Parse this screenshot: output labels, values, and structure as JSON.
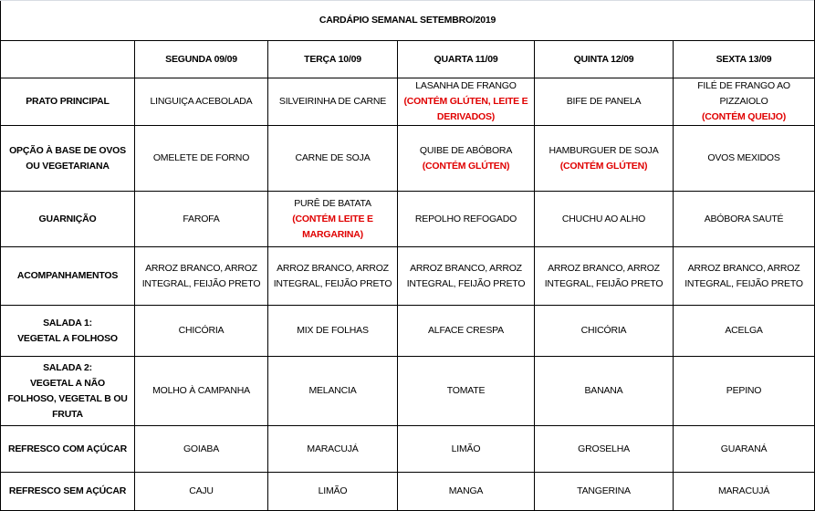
{
  "title": "CARDÁPIO SEMANAL SETEMBRO/2019",
  "accent_color": "#e00000",
  "days": [
    "SEGUNDA  09/09",
    "TERÇA 10/09",
    "QUARTA 11/09",
    "QUINTA 12/09",
    "SEXTA 13/09"
  ],
  "rows": [
    {
      "label": [
        "PRATO PRINCIPAL"
      ],
      "cells": [
        {
          "lines": [
            "LINGUIÇA ACEBOLADA"
          ],
          "note": []
        },
        {
          "lines": [
            "SILVEIRINHA DE CARNE"
          ],
          "note": []
        },
        {
          "lines": [
            "LASANHA  DE FRANGO"
          ],
          "note": [
            "(CONTÉM GLÚTEN, LEITE E",
            "DERIVADOS)"
          ]
        },
        {
          "lines": [
            "BIFE DE PANELA"
          ],
          "note": []
        },
        {
          "lines": [
            "FILÉ DE FRANGO AO",
            "PIZZAIOLO"
          ],
          "note": [
            "(CONTÉM QUEIJO)"
          ]
        }
      ]
    },
    {
      "label": [
        "OPÇÃO À BASE DE OVOS",
        "OU VEGETARIANA"
      ],
      "cells": [
        {
          "lines": [
            "OMELETE DE FORNO"
          ],
          "note": []
        },
        {
          "lines": [
            "CARNE DE SOJA"
          ],
          "note": []
        },
        {
          "lines": [
            "QUIBE DE ABÓBORA"
          ],
          "note": [
            "(CONTÉM GLÚTEN)"
          ]
        },
        {
          "lines": [
            "HAMBURGUER DE SOJA"
          ],
          "note": [
            "(CONTÉM GLÚTEN)"
          ]
        },
        {
          "lines": [
            "OVOS MEXIDOS"
          ],
          "note": []
        }
      ]
    },
    {
      "label": [
        "GUARNIÇÃO"
      ],
      "cells": [
        {
          "lines": [
            "FAROFA"
          ],
          "note": []
        },
        {
          "lines": [
            "PURÊ DE BATATA"
          ],
          "note": [
            "(CONTÉM LEITE E",
            "MARGARINA)"
          ]
        },
        {
          "lines": [
            "REPOLHO REFOGADO"
          ],
          "note": []
        },
        {
          "lines": [
            "CHUCHU AO ALHO"
          ],
          "note": []
        },
        {
          "lines": [
            "ABÓBORA SAUTÉ"
          ],
          "note": []
        }
      ]
    },
    {
      "label": [
        "ACOMPANHAMENTOS"
      ],
      "cells": [
        {
          "lines": [
            "ARROZ BRANCO, ARROZ",
            "INTEGRAL, FEIJÃO PRETO"
          ],
          "note": []
        },
        {
          "lines": [
            "ARROZ BRANCO, ARROZ",
            "INTEGRAL, FEIJÃO PRETO"
          ],
          "note": []
        },
        {
          "lines": [
            "ARROZ BRANCO, ARROZ",
            "INTEGRAL, FEIJÃO PRETO"
          ],
          "note": []
        },
        {
          "lines": [
            "ARROZ BRANCO, ARROZ",
            "INTEGRAL, FEIJÃO PRETO"
          ],
          "note": []
        },
        {
          "lines": [
            "ARROZ BRANCO, ARROZ",
            "INTEGRAL, FEIJÃO PRETO"
          ],
          "note": []
        }
      ]
    },
    {
      "label": [
        "SALADA 1:",
        "VEGETAL A FOLHOSO"
      ],
      "cells": [
        {
          "lines": [
            "CHICÓRIA"
          ],
          "note": []
        },
        {
          "lines": [
            "MIX DE FOLHAS"
          ],
          "note": []
        },
        {
          "lines": [
            "ALFACE  CRESPA"
          ],
          "note": []
        },
        {
          "lines": [
            "CHICÓRIA"
          ],
          "note": []
        },
        {
          "lines": [
            "ACELGA"
          ],
          "note": []
        }
      ]
    },
    {
      "label": [
        "SALADA 2:",
        "VEGETAL A NÃO",
        "FOLHOSO, VEGETAL B OU",
        "FRUTA"
      ],
      "cells": [
        {
          "lines": [
            "MOLHO À CAMPANHA"
          ],
          "note": []
        },
        {
          "lines": [
            "MELANCIA"
          ],
          "note": []
        },
        {
          "lines": [
            "TOMATE"
          ],
          "note": []
        },
        {
          "lines": [
            "BANANA"
          ],
          "note": []
        },
        {
          "lines": [
            "PEPINO"
          ],
          "note": []
        }
      ]
    },
    {
      "label": [
        "REFRESCO COM AÇÚCAR"
      ],
      "cells": [
        {
          "lines": [
            "GOIABA"
          ],
          "note": []
        },
        {
          "lines": [
            "MARACUJÁ"
          ],
          "note": []
        },
        {
          "lines": [
            "LIMÃO"
          ],
          "note": []
        },
        {
          "lines": [
            "GROSELHA"
          ],
          "note": []
        },
        {
          "lines": [
            "GUARANÁ"
          ],
          "note": []
        }
      ]
    },
    {
      "label": [
        "REFRESCO SEM AÇÚCAR"
      ],
      "cells": [
        {
          "lines": [
            "CAJU"
          ],
          "note": []
        },
        {
          "lines": [
            "LIMÃO"
          ],
          "note": []
        },
        {
          "lines": [
            "MANGA"
          ],
          "note": []
        },
        {
          "lines": [
            "TANGERINA"
          ],
          "note": []
        },
        {
          "lines": [
            "MARACUJÁ"
          ],
          "note": []
        }
      ]
    }
  ]
}
